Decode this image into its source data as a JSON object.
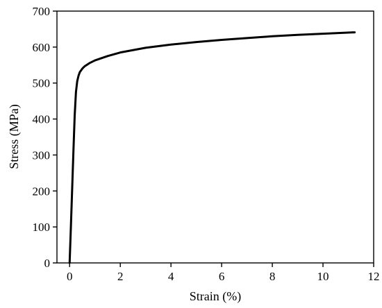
{
  "chart_data": {
    "type": "line",
    "title": "",
    "xlabel": "Strain (%)",
    "ylabel": "Stress (MPa)",
    "xlim": [
      -0.5,
      12
    ],
    "ylim": [
      0,
      700
    ],
    "x_ticks": [
      0,
      2,
      4,
      6,
      8,
      10,
      12
    ],
    "y_ticks": [
      0,
      100,
      200,
      300,
      400,
      500,
      600,
      700
    ],
    "grid": false,
    "legend": "none",
    "line_color": "#000000",
    "series": [
      {
        "x": [
          0,
          0.05,
          0.1,
          0.15,
          0.2,
          0.25,
          0.3,
          0.35,
          0.4,
          0.5,
          0.6,
          0.8,
          1.0,
          1.5,
          2.0,
          3.0,
          4.0,
          5.0,
          6.0,
          7.0,
          8.0,
          9.0,
          10.0,
          11.25
        ],
        "y": [
          0,
          100,
          205,
          310,
          410,
          475,
          505,
          520,
          530,
          540,
          547,
          556,
          563,
          575,
          585,
          598,
          607,
          614,
          620,
          625,
          630,
          634,
          637,
          641
        ]
      }
    ]
  }
}
